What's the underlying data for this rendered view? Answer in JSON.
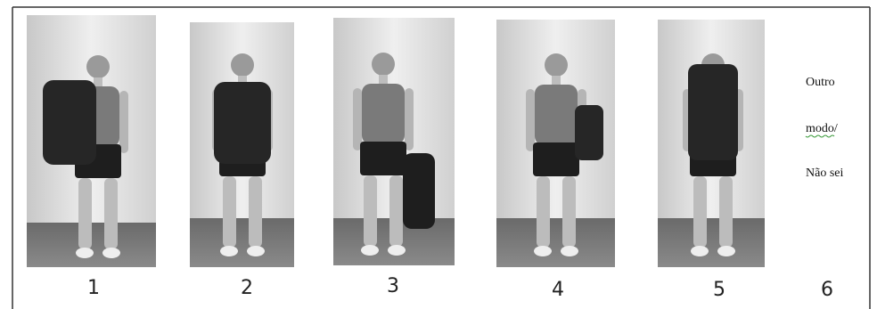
{
  "panels": [
    {
      "label": "1"
    },
    {
      "label": "2"
    },
    {
      "label": "3"
    },
    {
      "label": "4"
    },
    {
      "label": "5"
    }
  ],
  "option6": {
    "lines": [
      "Outro",
      "modo/",
      "Não sei"
    ],
    "label": "6"
  }
}
